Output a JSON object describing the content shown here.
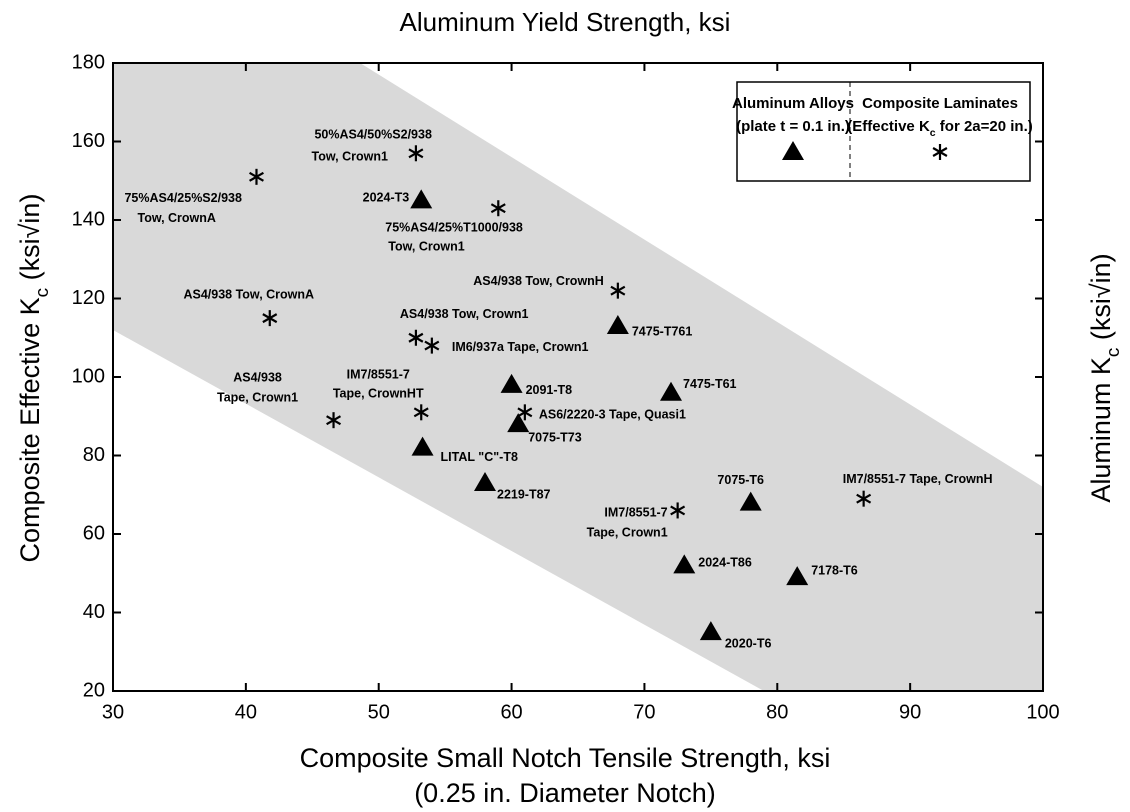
{
  "chart_data": {
    "type": "scatter",
    "title": "Aluminum Yield Strength, ksi",
    "xlabel": [
      "Composite Small Notch Tensile Strength, ksi",
      "(0.25 in. Diameter Notch)"
    ],
    "ylabel": [
      "Composite Effective K",
      "c",
      " (ksi√in)"
    ],
    "y2label": [
      "Aluminum K",
      "c",
      " (ksi√in)"
    ],
    "xlim": [
      30,
      100
    ],
    "xticks": [
      30,
      40,
      50,
      60,
      70,
      80,
      90,
      100
    ],
    "ylim": [
      20,
      180
    ],
    "yticks": [
      20,
      40,
      60,
      80,
      100,
      120,
      140,
      160,
      180
    ],
    "grid": false,
    "legend": "upper right",
    "series": [
      {
        "name": "Aluminum Alloys",
        "note": [
          "(plate t = 0.1 in.)"
        ],
        "marker": "triangle",
        "color": "#000000",
        "x": [
          53.2,
          68,
          60,
          72,
          60.5,
          53.3,
          58,
          78,
          73,
          81.5,
          75
        ],
        "values": [
          145,
          113,
          98,
          96,
          88,
          82,
          73,
          68,
          52,
          49,
          35
        ],
        "labels": [
          [
            "2024-T3"
          ],
          [
            "7475-T761"
          ],
          [
            "2091-T8"
          ],
          [
            "7475-T61"
          ],
          [
            "7075-T73"
          ],
          [
            "LITAL \"C\"-T8"
          ],
          [
            "2219-T87"
          ],
          [
            "7075-T6"
          ],
          [
            "2024-T86"
          ],
          [
            "7178-T6"
          ],
          [
            "2020-T6"
          ]
        ]
      },
      {
        "name": "Composite Laminates",
        "note": [
          "(Effective K",
          "c",
          " for 2a=20 in.)"
        ],
        "marker": "asterisk",
        "color": "#000000",
        "x": [
          52.8,
          40.8,
          59,
          68,
          41.8,
          52.8,
          54,
          53.2,
          46.6,
          61,
          72.5,
          86.5
        ],
        "values": [
          157,
          151,
          143,
          122,
          115,
          110,
          108,
          91,
          89,
          91,
          66,
          69
        ],
        "labels": [
          [
            "50%AS4/50%S2/938",
            "Tow, Crown1"
          ],
          [
            "75%AS4/25%S2/938",
            "Tow, CrownA"
          ],
          [
            "75%AS4/25%T1000/938",
            "Tow, Crown1"
          ],
          [
            "AS4/938 Tow, CrownH"
          ],
          [
            "AS4/938 Tow, CrownA"
          ],
          [
            "AS4/938 Tow, Crown1"
          ],
          [
            "IM6/937a Tape, Crown1"
          ],
          [
            "IM7/8551-7",
            "Tape, CrownHT"
          ],
          [
            "AS4/938",
            "Tape, Crown1"
          ],
          [
            "AS6/2220-3 Tape, Quasi1"
          ],
          [
            "IM7/8551-7",
            "Tape, Crown1"
          ],
          [
            "IM7/8551-7 Tape, CrownH"
          ]
        ]
      }
    ]
  }
}
